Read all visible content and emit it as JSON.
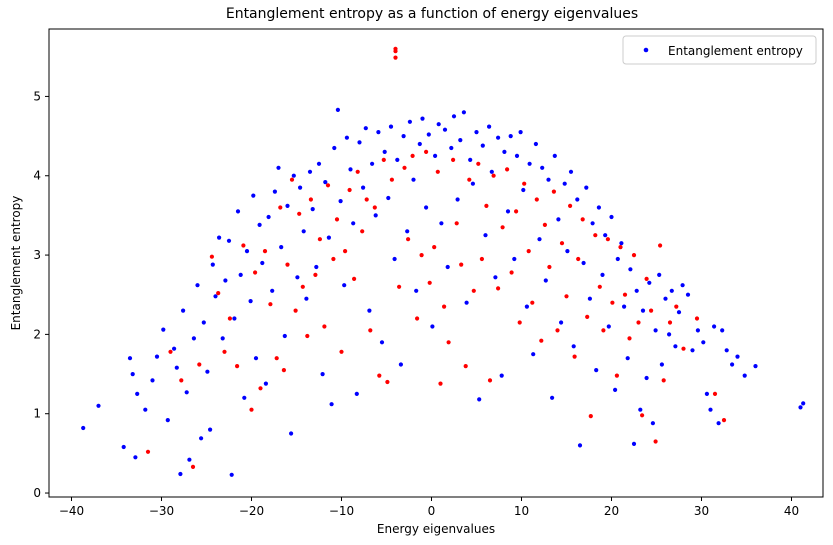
{
  "chart_data": {
    "type": "scatter",
    "title": "Entanglement entropy as a function of energy eigenvalues",
    "xlabel": "Energy eigenvalues",
    "ylabel": "Entanglement entropy",
    "xlim": [
      -42.5,
      43.5
    ],
    "ylim": [
      -0.05,
      5.85
    ],
    "xticks": [
      -40,
      -30,
      -20,
      -10,
      0,
      10,
      20,
      30,
      40
    ],
    "yticks": [
      0,
      1,
      2,
      3,
      4,
      5
    ],
    "grid": false,
    "legend": {
      "position": "top-right",
      "entries": [
        "Entanglement entropy"
      ]
    },
    "colors": {
      "primary": "#0000ff",
      "secondary": "#ff0000"
    },
    "series": [
      {
        "name": "Entanglement entropy",
        "color": "#0000ff",
        "points": [
          [
            -38.7,
            0.82
          ],
          [
            -37.0,
            1.1
          ],
          [
            -34.2,
            0.58
          ],
          [
            -33.5,
            1.7
          ],
          [
            -33.2,
            1.5
          ],
          [
            -32.9,
            0.45
          ],
          [
            -32.7,
            1.25
          ],
          [
            -31.8,
            1.05
          ],
          [
            -31.0,
            1.42
          ],
          [
            -30.5,
            1.72
          ],
          [
            -29.8,
            2.06
          ],
          [
            -29.3,
            0.92
          ],
          [
            -28.6,
            1.82
          ],
          [
            -28.3,
            1.58
          ],
          [
            -27.9,
            0.24
          ],
          [
            -27.6,
            2.3
          ],
          [
            -27.2,
            1.27
          ],
          [
            -26.9,
            0.42
          ],
          [
            -26.4,
            1.95
          ],
          [
            -26.0,
            2.62
          ],
          [
            -25.6,
            0.69
          ],
          [
            -25.3,
            2.15
          ],
          [
            -24.9,
            1.53
          ],
          [
            -24.6,
            0.8
          ],
          [
            -24.3,
            2.88
          ],
          [
            -24.0,
            2.48
          ],
          [
            -23.6,
            3.22
          ],
          [
            -23.2,
            1.95
          ],
          [
            -22.9,
            2.68
          ],
          [
            -22.5,
            3.18
          ],
          [
            -22.2,
            0.23
          ],
          [
            -21.9,
            2.2
          ],
          [
            -21.5,
            3.55
          ],
          [
            -21.2,
            2.75
          ],
          [
            -20.8,
            1.2
          ],
          [
            -20.5,
            3.05
          ],
          [
            -20.1,
            2.42
          ],
          [
            -19.8,
            3.75
          ],
          [
            -19.5,
            1.7
          ],
          [
            -19.1,
            3.38
          ],
          [
            -18.8,
            2.9
          ],
          [
            -18.4,
            1.38
          ],
          [
            -18.1,
            3.48
          ],
          [
            -17.7,
            2.55
          ],
          [
            -17.4,
            3.8
          ],
          [
            -17.0,
            4.1
          ],
          [
            -16.7,
            3.1
          ],
          [
            -16.3,
            1.98
          ],
          [
            -16.0,
            3.62
          ],
          [
            -15.6,
            0.75
          ],
          [
            -15.3,
            4.0
          ],
          [
            -14.9,
            2.72
          ],
          [
            -14.6,
            3.85
          ],
          [
            -14.2,
            3.3
          ],
          [
            -13.9,
            2.45
          ],
          [
            -13.5,
            4.05
          ],
          [
            -13.2,
            3.58
          ],
          [
            -12.8,
            2.85
          ],
          [
            -12.5,
            4.15
          ],
          [
            -12.1,
            1.5
          ],
          [
            -11.8,
            3.92
          ],
          [
            -11.4,
            3.22
          ],
          [
            -11.1,
            1.12
          ],
          [
            -10.8,
            4.35
          ],
          [
            -10.4,
            4.83
          ],
          [
            -10.1,
            3.68
          ],
          [
            -9.7,
            2.62
          ],
          [
            -9.4,
            4.48
          ],
          [
            -9.0,
            4.08
          ],
          [
            -8.7,
            3.4
          ],
          [
            -8.3,
            1.25
          ],
          [
            -8.0,
            4.42
          ],
          [
            -7.6,
            3.85
          ],
          [
            -7.3,
            4.6
          ],
          [
            -6.9,
            2.3
          ],
          [
            -6.6,
            4.15
          ],
          [
            -6.2,
            3.5
          ],
          [
            -5.9,
            4.55
          ],
          [
            -5.5,
            1.9
          ],
          [
            -5.2,
            4.3
          ],
          [
            -4.8,
            3.72
          ],
          [
            -4.5,
            4.62
          ],
          [
            -4.1,
            2.95
          ],
          [
            -3.8,
            4.2
          ],
          [
            -3.4,
            1.62
          ],
          [
            -3.1,
            4.5
          ],
          [
            -2.7,
            3.3
          ],
          [
            -2.4,
            4.68
          ],
          [
            -2.0,
            3.95
          ],
          [
            -1.7,
            2.55
          ],
          [
            -1.3,
            4.4
          ],
          [
            -1.0,
            4.72
          ],
          [
            -0.6,
            3.6
          ],
          [
            -0.3,
            4.52
          ],
          [
            0.1,
            2.1
          ],
          [
            0.4,
            4.25
          ],
          [
            0.8,
            4.65
          ],
          [
            1.1,
            3.4
          ],
          [
            1.5,
            4.58
          ],
          [
            1.8,
            2.85
          ],
          [
            2.2,
            4.35
          ],
          [
            2.5,
            4.75
          ],
          [
            2.9,
            3.7
          ],
          [
            3.2,
            4.45
          ],
          [
            3.6,
            4.8
          ],
          [
            3.9,
            2.4
          ],
          [
            4.3,
            4.2
          ],
          [
            4.6,
            3.9
          ],
          [
            5.0,
            4.55
          ],
          [
            5.3,
            1.18
          ],
          [
            5.7,
            4.38
          ],
          [
            6.0,
            3.25
          ],
          [
            6.4,
            4.62
          ],
          [
            6.7,
            4.05
          ],
          [
            7.1,
            2.72
          ],
          [
            7.4,
            4.48
          ],
          [
            7.8,
            1.48
          ],
          [
            8.1,
            4.3
          ],
          [
            8.5,
            3.55
          ],
          [
            8.8,
            4.5
          ],
          [
            9.2,
            2.95
          ],
          [
            9.5,
            4.25
          ],
          [
            9.9,
            4.55
          ],
          [
            10.2,
            3.82
          ],
          [
            10.6,
            2.35
          ],
          [
            10.9,
            4.15
          ],
          [
            11.3,
            1.75
          ],
          [
            11.6,
            4.4
          ],
          [
            12.0,
            3.2
          ],
          [
            12.3,
            4.1
          ],
          [
            12.7,
            2.68
          ],
          [
            13.0,
            3.95
          ],
          [
            13.4,
            1.2
          ],
          [
            13.7,
            4.25
          ],
          [
            14.1,
            3.45
          ],
          [
            14.4,
            2.15
          ],
          [
            14.8,
            3.9
          ],
          [
            15.1,
            3.05
          ],
          [
            15.5,
            4.05
          ],
          [
            15.8,
            1.85
          ],
          [
            16.2,
            3.7
          ],
          [
            16.5,
            0.6
          ],
          [
            16.9,
            2.9
          ],
          [
            17.2,
            3.85
          ],
          [
            17.6,
            2.45
          ],
          [
            17.9,
            3.4
          ],
          [
            18.3,
            1.55
          ],
          [
            18.6,
            3.6
          ],
          [
            19.0,
            2.75
          ],
          [
            19.3,
            3.25
          ],
          [
            19.7,
            2.1
          ],
          [
            20.0,
            3.48
          ],
          [
            20.4,
            1.3
          ],
          [
            20.7,
            2.95
          ],
          [
            21.1,
            3.15
          ],
          [
            21.4,
            2.35
          ],
          [
            21.8,
            1.7
          ],
          [
            22.1,
            2.82
          ],
          [
            22.5,
            0.62
          ],
          [
            22.8,
            2.55
          ],
          [
            23.2,
            1.05
          ],
          [
            23.5,
            2.3
          ],
          [
            23.9,
            1.45
          ],
          [
            24.2,
            2.65
          ],
          [
            24.6,
            0.88
          ],
          [
            24.9,
            2.05
          ],
          [
            25.3,
            2.75
          ],
          [
            25.6,
            1.62
          ],
          [
            26.0,
            2.45
          ],
          [
            26.4,
            2.0
          ],
          [
            26.7,
            2.55
          ],
          [
            27.1,
            1.85
          ],
          [
            27.5,
            2.28
          ],
          [
            27.9,
            2.62
          ],
          [
            28.5,
            2.5
          ],
          [
            29.0,
            1.8
          ],
          [
            29.6,
            2.05
          ],
          [
            30.2,
            1.9
          ],
          [
            30.6,
            1.25
          ],
          [
            31.0,
            1.05
          ],
          [
            31.4,
            2.1
          ],
          [
            31.9,
            0.88
          ],
          [
            32.3,
            2.05
          ],
          [
            32.8,
            1.8
          ],
          [
            33.4,
            1.62
          ],
          [
            34.0,
            1.72
          ],
          [
            34.8,
            1.48
          ],
          [
            36.0,
            1.6
          ],
          [
            41.0,
            1.08
          ],
          [
            41.3,
            1.13
          ]
        ]
      },
      {
        "name": "",
        "color": "#ff0000",
        "points": [
          [
            -31.5,
            0.52
          ],
          [
            -29.0,
            1.78
          ],
          [
            -27.8,
            1.42
          ],
          [
            -26.5,
            0.33
          ],
          [
            -25.8,
            1.62
          ],
          [
            -24.4,
            2.98
          ],
          [
            -23.7,
            2.52
          ],
          [
            -23.0,
            1.78
          ],
          [
            -22.4,
            2.2
          ],
          [
            -21.6,
            1.6
          ],
          [
            -20.9,
            3.12
          ],
          [
            -20.0,
            1.05
          ],
          [
            -19.6,
            2.78
          ],
          [
            -19.0,
            1.32
          ],
          [
            -18.5,
            3.05
          ],
          [
            -17.9,
            2.38
          ],
          [
            -17.2,
            1.7
          ],
          [
            -16.8,
            3.6
          ],
          [
            -16.4,
            1.55
          ],
          [
            -16.0,
            2.88
          ],
          [
            -15.5,
            3.95
          ],
          [
            -15.1,
            2.3
          ],
          [
            -14.7,
            3.52
          ],
          [
            -14.3,
            2.6
          ],
          [
            -13.8,
            1.98
          ],
          [
            -13.4,
            3.7
          ],
          [
            -12.9,
            2.75
          ],
          [
            -12.4,
            3.2
          ],
          [
            -11.9,
            2.1
          ],
          [
            -11.5,
            3.88
          ],
          [
            -10.9,
            2.95
          ],
          [
            -10.5,
            3.45
          ],
          [
            -10.0,
            1.78
          ],
          [
            -9.6,
            3.05
          ],
          [
            -9.1,
            3.82
          ],
          [
            -8.6,
            2.7
          ],
          [
            -8.2,
            4.05
          ],
          [
            -7.7,
            3.3
          ],
          [
            -7.2,
            3.7
          ],
          [
            -6.8,
            2.05
          ],
          [
            -6.3,
            3.6
          ],
          [
            -5.8,
            1.48
          ],
          [
            -5.3,
            4.2
          ],
          [
            -4.9,
            1.4
          ],
          [
            -4.4,
            3.95
          ],
          [
            -4.0,
            5.6
          ],
          [
            -4.0,
            5.57
          ],
          [
            -4.0,
            5.49
          ],
          [
            -3.6,
            2.6
          ],
          [
            -3.0,
            4.1
          ],
          [
            -2.6,
            3.2
          ],
          [
            -2.1,
            4.25
          ],
          [
            -1.6,
            2.2
          ],
          [
            -1.1,
            3.0
          ],
          [
            -0.6,
            4.3
          ],
          [
            -0.2,
            2.65
          ],
          [
            0.3,
            3.1
          ],
          [
            0.7,
            4.05
          ],
          [
            1.0,
            1.38
          ],
          [
            1.4,
            2.35
          ],
          [
            1.9,
            1.9
          ],
          [
            2.4,
            4.2
          ],
          [
            2.8,
            3.4
          ],
          [
            3.3,
            2.88
          ],
          [
            3.8,
            1.6
          ],
          [
            4.2,
            3.95
          ],
          [
            4.7,
            2.55
          ],
          [
            5.2,
            4.15
          ],
          [
            5.6,
            2.95
          ],
          [
            6.1,
            3.62
          ],
          [
            6.5,
            1.42
          ],
          [
            6.9,
            4.0
          ],
          [
            7.4,
            2.58
          ],
          [
            7.9,
            3.35
          ],
          [
            8.4,
            4.08
          ],
          [
            8.9,
            2.78
          ],
          [
            9.4,
            3.55
          ],
          [
            9.8,
            2.15
          ],
          [
            10.3,
            3.9
          ],
          [
            10.8,
            3.05
          ],
          [
            11.2,
            2.4
          ],
          [
            11.7,
            3.7
          ],
          [
            12.2,
            1.92
          ],
          [
            12.6,
            3.38
          ],
          [
            13.1,
            2.85
          ],
          [
            13.6,
            3.8
          ],
          [
            14.0,
            2.05
          ],
          [
            14.5,
            3.15
          ],
          [
            15.0,
            2.48
          ],
          [
            15.4,
            3.62
          ],
          [
            15.9,
            1.72
          ],
          [
            16.3,
            2.95
          ],
          [
            16.8,
            3.45
          ],
          [
            17.3,
            2.22
          ],
          [
            17.7,
            0.97
          ],
          [
            18.2,
            3.25
          ],
          [
            18.7,
            2.6
          ],
          [
            19.1,
            2.05
          ],
          [
            19.6,
            3.2
          ],
          [
            20.1,
            2.4
          ],
          [
            20.6,
            1.48
          ],
          [
            21.0,
            3.1
          ],
          [
            21.5,
            2.5
          ],
          [
            22.0,
            1.95
          ],
          [
            22.5,
            3.0
          ],
          [
            23.0,
            2.15
          ],
          [
            23.4,
            0.98
          ],
          [
            23.9,
            2.7
          ],
          [
            24.4,
            2.3
          ],
          [
            24.9,
            0.65
          ],
          [
            25.4,
            3.12
          ],
          [
            25.8,
            1.42
          ],
          [
            26.5,
            2.15
          ],
          [
            27.2,
            2.35
          ],
          [
            28.0,
            1.82
          ],
          [
            29.5,
            2.2
          ],
          [
            31.5,
            1.25
          ],
          [
            32.5,
            0.92
          ]
        ]
      }
    ]
  }
}
